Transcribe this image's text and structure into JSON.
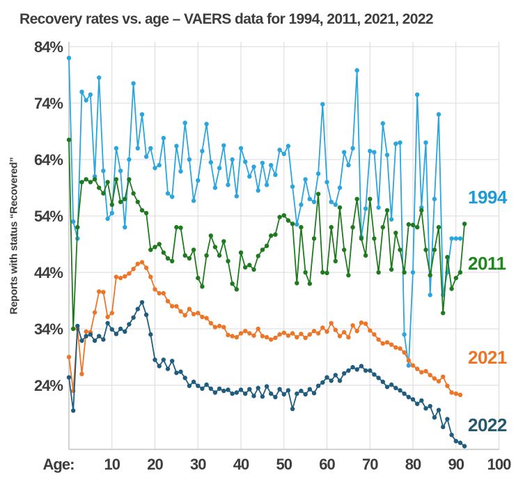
{
  "title": "Recovery rates vs. age – VAERS data for 1994, 2011, 2021, 2022",
  "y_axis": {
    "title": "Reports with status “Recovered”",
    "ticks": [
      "84%",
      "74%",
      "64%",
      "54%",
      "44%",
      "34%",
      "24%"
    ],
    "tick_values": [
      84,
      74,
      64,
      54,
      44,
      34,
      24
    ]
  },
  "x_axis": {
    "label": "Age:",
    "ticks": [
      "10",
      "20",
      "30",
      "40",
      "50",
      "60",
      "70",
      "80",
      "90",
      "100"
    ],
    "tick_values": [
      10,
      20,
      30,
      40,
      50,
      60,
      70,
      80,
      90,
      100
    ]
  },
  "style": {
    "grid_color": "#d9d9d9",
    "axis_color": "#c4c4c4",
    "text_color": "#3d3d3d",
    "background": "#ffffff"
  },
  "chart_data": {
    "type": "line",
    "title": "Recovery rates vs. age – VAERS data for 1994, 2011, 2021, 2022",
    "xlabel": "Age:",
    "ylabel": "Reports with status “Recovered”",
    "x_unit": "age in years, value index = age",
    "xlim": [
      0,
      104
    ],
    "ylim": [
      12,
      86
    ],
    "grid": true,
    "legend_position": "right-inside",
    "x_gridline_ages": [
      0,
      10,
      20,
      30,
      40,
      50,
      60,
      70,
      80,
      90,
      100
    ],
    "y_gridline_values": [
      84,
      74,
      64,
      54,
      44,
      34,
      24
    ],
    "series": [
      {
        "name": "1994",
        "color": "#2aa5dd",
        "label_color": "#1d9bd7",
        "values": [
          82,
          53,
          50,
          76,
          74.5,
          75.5,
          61,
          78.5,
          62,
          53.5,
          54.5,
          66,
          62,
          52,
          64,
          77.5,
          66,
          72,
          64.5,
          66,
          62.5,
          63,
          67.8,
          58,
          57.4,
          66.4,
          61.9,
          70.5,
          64,
          56.7,
          60.3,
          65.5,
          70.3,
          63.5,
          59,
          62.5,
          66.5,
          59.5,
          64,
          57.5,
          66,
          63.6,
          61,
          62.7,
          58.5,
          63.4,
          59.5,
          63,
          61.3,
          65.7,
          65,
          66.4,
          59.2,
          52.5,
          56,
          60.5,
          57,
          56.5,
          61.5,
          73.8,
          60,
          56.5,
          56,
          59,
          65.3,
          63,
          66,
          79.8,
          50.3,
          55.3,
          65.5,
          65.3,
          55.5,
          70.4,
          64.8,
          53.4,
          66.8,
          67,
          33,
          27.5,
          44,
          75.5,
          55.5,
          67,
          40,
          57,
          72,
          40,
          44,
          50,
          50,
          50
        ]
      },
      {
        "name": "2011",
        "color": "#1f7a1f",
        "label_color": "#1b8a1b",
        "values": [
          67.5,
          34,
          52,
          60,
          60.5,
          60,
          60.5,
          59,
          58,
          60,
          56,
          60.5,
          56.5,
          57,
          60.5,
          58,
          56.5,
          55,
          54.5,
          48,
          48.5,
          49,
          47.5,
          46.5,
          46,
          52,
          51.9,
          47,
          46.5,
          48,
          43,
          41.5,
          47,
          50.5,
          48.5,
          47,
          49.5,
          46,
          42,
          41,
          47.5,
          44.9,
          45.3,
          44.5,
          46.9,
          48,
          48.7,
          50.5,
          50.7,
          53.8,
          54.1,
          53.2,
          52.6,
          42.1,
          52,
          44,
          42,
          50,
          57.9,
          44,
          43.9,
          52,
          46,
          55.5,
          48,
          43.5,
          52,
          57,
          50,
          47,
          57,
          50,
          44,
          52,
          55,
          44.5,
          51,
          48,
          44,
          52.5,
          52.4,
          52,
          55,
          48,
          43.5,
          48,
          52,
          36.8,
          46.7,
          41.1,
          43,
          44,
          52.6
        ]
      },
      {
        "name": "2021",
        "color": "#ed7528",
        "label_color": "#ee7425",
        "values": [
          29,
          23,
          34,
          26,
          33.5,
          33.4,
          36.9,
          40.6,
          40.5,
          36.1,
          36.8,
          43.2,
          43,
          43.3,
          43.8,
          44.6,
          45.5,
          45.8,
          44.8,
          43.2,
          41,
          40.3,
          40.3,
          38.9,
          38,
          38,
          37.1,
          36.4,
          37.5,
          36.6,
          36.8,
          36.1,
          35.9,
          35,
          34.3,
          34.5,
          34.3,
          32.9,
          32.7,
          32.5,
          33.2,
          33.6,
          33.2,
          32.8,
          34,
          32.7,
          32.5,
          32.1,
          32.4,
          33,
          33.3,
          32.8,
          33.2,
          32.5,
          33.1,
          32.4,
          33,
          33.6,
          33.2,
          34.2,
          33.5,
          35,
          33.8,
          32.7,
          33.4,
          32.5,
          34.6,
          33.6,
          35.1,
          34.9,
          33.7,
          33,
          32.1,
          31.4,
          31.6,
          31.2,
          30.7,
          30.5,
          29.8,
          28.4,
          27.5,
          26.9,
          26.3,
          26.5,
          25.8,
          25.2,
          24.7,
          25.5,
          23.9,
          22.7,
          22.5,
          22.3
        ]
      },
      {
        "name": "2022",
        "color": "#1f5c7d",
        "label_color": "#24586f",
        "values": [
          25.4,
          19.5,
          34.5,
          31.9,
          32.7,
          33,
          31.9,
          32.7,
          32.1,
          35,
          33.9,
          33.1,
          34,
          33.5,
          34.8,
          36,
          37.5,
          38.7,
          36.5,
          33,
          28.5,
          27.4,
          28.5,
          26.9,
          28.3,
          26.2,
          26.4,
          25.3,
          23.9,
          24.6,
          23.9,
          23.4,
          24.1,
          23.4,
          22.7,
          23.4,
          23,
          23.2,
          22.5,
          22.7,
          23.2,
          22.5,
          23.3,
          22.1,
          23.5,
          22,
          23.8,
          22.5,
          21.9,
          23.3,
          22.4,
          23.1,
          19.8,
          22.5,
          23,
          22.4,
          23.3,
          22.6,
          23.9,
          24.5,
          25.4,
          24.8,
          25.8,
          24.8,
          26.1,
          26.6,
          27.2,
          26.8,
          27.4,
          26.6,
          26.6,
          25.9,
          25.3,
          24.6,
          23.7,
          24.1,
          23.5,
          23.1,
          22.5,
          21.9,
          21.5,
          20.7,
          21.3,
          19.9,
          20.3,
          18.3,
          19.6,
          16.6,
          18,
          15.2,
          14.1,
          13.8,
          13.2
        ]
      }
    ]
  }
}
